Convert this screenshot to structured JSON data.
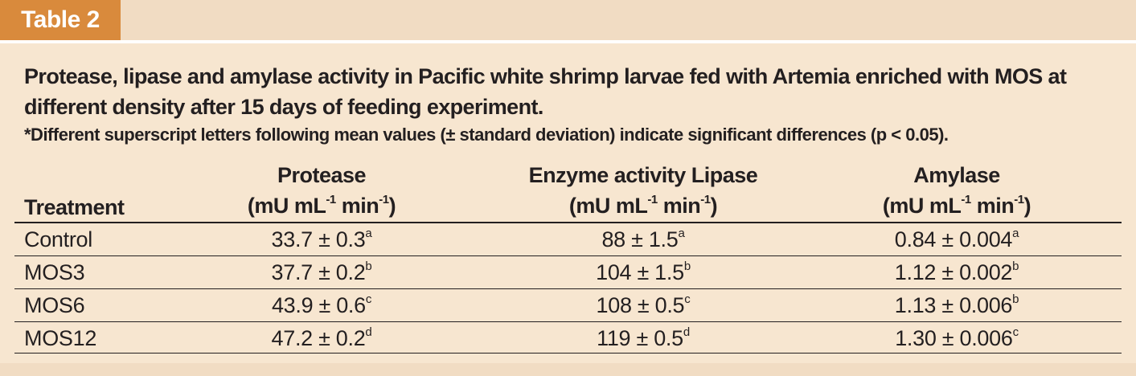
{
  "tab_label": "Table 2",
  "caption": "Protease, lipase and amylase activity in Pacific white shrimp larvae fed with Artemia enriched with MOS at different density after 15 days of feeding experiment.",
  "footnote": "*Different superscript letters following mean values (± standard deviation) indicate significant differences (p < 0.05).",
  "colors": {
    "tab_background": "#d98a3c",
    "panel_background": "#f7e6d0",
    "band_background": "#f1dcc3",
    "text": "#231f20"
  },
  "headers": {
    "treatment": "Treatment",
    "protease": {
      "title": "Protease",
      "unit_prefix": "(mU mL",
      "unit_exp1": "-1",
      "unit_mid": " min",
      "unit_exp2": "-1",
      "unit_suffix": ")"
    },
    "lipase": {
      "title": "Enzyme activity Lipase",
      "unit_prefix": "(mU mL",
      "unit_exp1": "-1",
      "unit_mid": " min",
      "unit_exp2": "-1",
      "unit_suffix": ")"
    },
    "amylase": {
      "title": "Amylase",
      "unit_prefix": "(mU mL",
      "unit_exp1": "-1",
      "unit_mid": " min",
      "unit_exp2": "-1",
      "unit_suffix": ")"
    }
  },
  "rows": [
    {
      "treatment": "Control",
      "protease": {
        "value": "33.7 ± 0.3",
        "sig": "a"
      },
      "lipase": {
        "value": "88 ± 1.5",
        "sig": "a"
      },
      "amylase": {
        "value": "0.84 ± 0.004",
        "sig": "a"
      }
    },
    {
      "treatment": "MOS3",
      "protease": {
        "value": "37.7 ± 0.2",
        "sig": "b"
      },
      "lipase": {
        "value": "104 ± 1.5",
        "sig": "b"
      },
      "amylase": {
        "value": "1.12 ± 0.002",
        "sig": "b"
      }
    },
    {
      "treatment": "MOS6",
      "protease": {
        "value": "43.9 ± 0.6",
        "sig": "c"
      },
      "lipase": {
        "value": "108 ± 0.5",
        "sig": "c"
      },
      "amylase": {
        "value": "1.13 ± 0.006",
        "sig": "b"
      }
    },
    {
      "treatment": "MOS12",
      "protease": {
        "value": "47.2 ± 0.2",
        "sig": "d"
      },
      "lipase": {
        "value": "119 ± 0.5",
        "sig": "d"
      },
      "amylase": {
        "value": "1.30 ± 0.006",
        "sig": "c"
      }
    }
  ]
}
